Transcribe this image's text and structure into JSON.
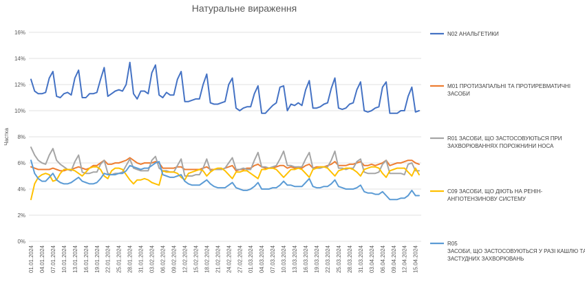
{
  "chart_data": {
    "type": "line",
    "title": "Натуральне вираження",
    "ylabel": "Частка",
    "xlabel": "",
    "ylim": [
      0,
      16
    ],
    "yticks": [
      "0%",
      "2%",
      "4%",
      "6%",
      "8%",
      "10%",
      "12%",
      "14%",
      "16%"
    ],
    "grid": true,
    "legend_position": "right",
    "x_tick_labels": [
      "01.01.2024",
      "04.01.2024",
      "07.01.2024",
      "10.01.2024",
      "13.01.2024",
      "16.01.2024",
      "19.01.2024",
      "22.01.2024",
      "25.01.2024",
      "28.01.2024",
      "31.01.2024",
      "03.02.2024",
      "06.02.2024",
      "09.02.2024",
      "12.02.2024",
      "15.02.2024",
      "18.02.2024",
      "21.02.2024",
      "24.02.2024",
      "27.02.2024",
      "01.03.2024",
      "04.03.2024",
      "07.03.2024",
      "10.03.2024",
      "13.03.2024",
      "16.03.2024",
      "19.03.2024",
      "22.03.2024",
      "25.03.2024",
      "28.03.2024",
      "31.03.2024",
      "03.04.2024",
      "06.04.2024",
      "09.04.2024",
      "12.04.2024",
      "15.04.2024"
    ],
    "series": [
      {
        "name": "N02 АНАЛЬГЕТИКИ",
        "color": "#4472C4",
        "values": [
          12.4,
          11.5,
          11.3,
          11.3,
          11.4,
          12.5,
          13.0,
          11.1,
          11.0,
          11.3,
          11.4,
          11.2,
          12.5,
          13.1,
          11.0,
          11.0,
          11.3,
          11.3,
          11.4,
          12.4,
          13.3,
          11.1,
          11.3,
          11.5,
          11.6,
          11.5,
          12.0,
          13.7,
          11.3,
          10.9,
          11.5,
          11.5,
          11.3,
          12.9,
          13.5,
          11.2,
          11.0,
          11.4,
          11.2,
          11.2,
          12.4,
          13.0,
          10.7,
          10.7,
          10.8,
          10.9,
          10.9,
          12.0,
          12.8,
          10.6,
          10.5,
          10.5,
          10.6,
          10.7,
          12.0,
          12.5,
          10.2,
          10.0,
          10.2,
          10.3,
          10.3,
          11.3,
          11.9,
          9.8,
          9.8,
          10.1,
          10.4,
          10.6,
          11.8,
          11.9,
          10.0,
          10.5,
          10.4,
          10.6,
          10.4,
          11.6,
          12.3,
          10.2,
          10.2,
          10.3,
          10.5,
          10.6,
          11.7,
          12.5,
          10.2,
          10.1,
          10.2,
          10.5,
          10.6,
          11.6,
          12.2,
          10.0,
          9.9,
          10.0,
          10.2,
          10.3,
          11.8,
          12.2,
          9.8,
          9.8,
          9.8,
          10.0,
          10.0,
          11.1,
          11.8,
          9.9,
          10.0
        ]
      },
      {
        "name": "M01 ПРОТИЗАПАЛЬНІ ТА ПРОТИРЕВМАТИЧНІ ЗАСОБИ",
        "color": "#ED7D31",
        "values": [
          5.7,
          5.6,
          5.5,
          5.5,
          5.5,
          5.5,
          5.6,
          5.5,
          5.4,
          5.4,
          5.5,
          5.5,
          5.6,
          5.7,
          5.6,
          5.5,
          5.6,
          5.8,
          5.8,
          6.0,
          6.2,
          5.9,
          5.9,
          6.0,
          6.0,
          6.1,
          6.2,
          6.4,
          6.2,
          6.0,
          5.9,
          6.0,
          6.0,
          6.0,
          6.1,
          6.0,
          5.6,
          5.6,
          5.6,
          5.6,
          5.7,
          5.7,
          5.5,
          5.5,
          5.5,
          5.5,
          5.5,
          5.6,
          5.7,
          5.5,
          5.5,
          5.5,
          5.5,
          5.6,
          5.7,
          5.8,
          5.4,
          5.5,
          5.5,
          5.6,
          5.6,
          5.8,
          5.9,
          5.7,
          5.6,
          5.6,
          5.6,
          5.7,
          5.8,
          5.8,
          5.6,
          5.7,
          5.6,
          5.7,
          5.6,
          5.8,
          5.9,
          5.6,
          5.7,
          5.7,
          5.7,
          5.8,
          5.9,
          6.1,
          5.8,
          5.8,
          5.8,
          5.9,
          5.9,
          6.0,
          6.1,
          5.8,
          5.8,
          5.9,
          5.8,
          5.9,
          6.0,
          6.2,
          5.8,
          5.9,
          6.0,
          6.0,
          6.1,
          6.2,
          6.2,
          6.0,
          5.9
        ]
      },
      {
        "name": "R01 ЗАСОБИ, ЩО ЗАСТОСОВУЮТЬСЯ ПРИ ЗАХВОРЮВАННЯХ ПОРОЖНИНИ НОСА",
        "color": "#A5A5A5",
        "values": [
          7.2,
          6.6,
          6.2,
          6.0,
          5.9,
          6.6,
          7.1,
          6.2,
          5.9,
          5.7,
          5.5,
          5.4,
          6.1,
          6.6,
          5.3,
          5.2,
          5.2,
          5.3,
          5.3,
          5.9,
          6.2,
          5.2,
          5.1,
          5.2,
          5.2,
          5.3,
          5.8,
          6.3,
          5.6,
          5.5,
          5.4,
          5.4,
          5.4,
          6.2,
          6.5,
          5.6,
          5.4,
          5.4,
          5.3,
          5.3,
          5.8,
          6.3,
          5.0,
          5.0,
          5.0,
          5.1,
          5.1,
          5.6,
          6.3,
          5.4,
          5.5,
          5.5,
          5.5,
          5.6,
          6.0,
          6.4,
          5.5,
          5.5,
          5.6,
          5.5,
          5.5,
          6.2,
          6.8,
          5.7,
          5.7,
          5.6,
          5.7,
          5.8,
          6.3,
          6.9,
          5.8,
          5.8,
          5.7,
          5.7,
          5.7,
          6.3,
          6.8,
          5.6,
          5.6,
          5.6,
          5.7,
          5.7,
          6.2,
          6.9,
          5.6,
          5.6,
          5.5,
          5.6,
          5.6,
          6.1,
          6.3,
          5.3,
          5.2,
          5.2,
          5.2,
          5.3,
          5.9,
          6.2,
          5.2,
          5.2,
          5.2,
          5.2,
          5.1,
          5.9,
          6.0,
          5.4,
          5.4
        ]
      },
      {
        "name": "C09 ЗАСОБИ, ЩО ДІЮТЬ НА РЕНІН-АНГІОТЕНЗИНОВУ СИСТЕМУ",
        "color": "#FFC000",
        "values": [
          3.2,
          4.4,
          4.9,
          5.1,
          5.2,
          5.1,
          4.6,
          4.7,
          5.2,
          5.5,
          5.5,
          5.5,
          5.4,
          5.2,
          5.0,
          5.3,
          5.6,
          5.7,
          5.7,
          5.5,
          5.0,
          4.8,
          5.4,
          5.6,
          5.6,
          5.5,
          5.1,
          4.7,
          4.4,
          4.7,
          4.7,
          4.8,
          4.7,
          4.5,
          4.4,
          4.3,
          5.4,
          5.3,
          5.3,
          5.3,
          5.2,
          4.9,
          4.7,
          5.2,
          5.3,
          5.4,
          5.5,
          5.4,
          5.0,
          5.3,
          5.5,
          5.6,
          5.6,
          5.4,
          5.1,
          4.8,
          5.3,
          5.3,
          5.4,
          5.4,
          5.2,
          5.0,
          4.8,
          5.5,
          5.5,
          5.6,
          5.6,
          5.5,
          5.2,
          4.9,
          5.2,
          5.5,
          5.5,
          5.6,
          5.5,
          5.2,
          4.9,
          5.5,
          5.6,
          5.7,
          5.7,
          5.6,
          5.3,
          5.0,
          5.4,
          5.5,
          5.6,
          5.6,
          5.5,
          5.3,
          5.0,
          5.5,
          5.6,
          5.7,
          5.7,
          5.6,
          5.2,
          4.9,
          5.4,
          5.5,
          5.6,
          5.6,
          5.6,
          5.3,
          5.0,
          5.6,
          5.1
        ]
      },
      {
        "name": "R05 ЗАСОБИ, ЩО ЗАСТОСОВУЮТЬСЯ У РАЗІ КАШЛЮ ТА ЗАСТУДНИХ ЗАХВОРЮВАНЬ",
        "color": "#5B9BD5",
        "values": [
          6.2,
          5.2,
          4.8,
          4.6,
          4.6,
          4.9,
          5.2,
          4.7,
          4.5,
          4.4,
          4.4,
          4.5,
          4.7,
          4.9,
          4.6,
          4.5,
          4.4,
          4.4,
          4.5,
          4.8,
          5.2,
          5.1,
          5.1,
          5.1,
          5.2,
          5.2,
          5.4,
          5.8,
          5.7,
          5.6,
          5.5,
          5.6,
          5.6,
          5.8,
          6.0,
          6.1,
          5.1,
          5.0,
          4.9,
          4.9,
          5.0,
          5.1,
          4.6,
          4.4,
          4.3,
          4.3,
          4.3,
          4.5,
          4.7,
          4.4,
          4.2,
          4.1,
          4.1,
          4.1,
          4.3,
          4.5,
          4.1,
          4.0,
          3.9,
          3.9,
          4.0,
          4.2,
          4.5,
          4.0,
          4.0,
          4.0,
          4.1,
          4.1,
          4.3,
          4.6,
          4.3,
          4.3,
          4.2,
          4.2,
          4.2,
          4.5,
          4.8,
          4.2,
          4.1,
          4.1,
          4.2,
          4.2,
          4.4,
          4.7,
          4.2,
          4.1,
          4.0,
          4.0,
          4.0,
          4.1,
          4.3,
          3.8,
          3.7,
          3.7,
          3.6,
          3.6,
          3.8,
          3.5,
          3.2,
          3.2,
          3.2,
          3.3,
          3.3,
          3.5,
          3.9,
          3.5,
          3.5
        ]
      }
    ]
  }
}
